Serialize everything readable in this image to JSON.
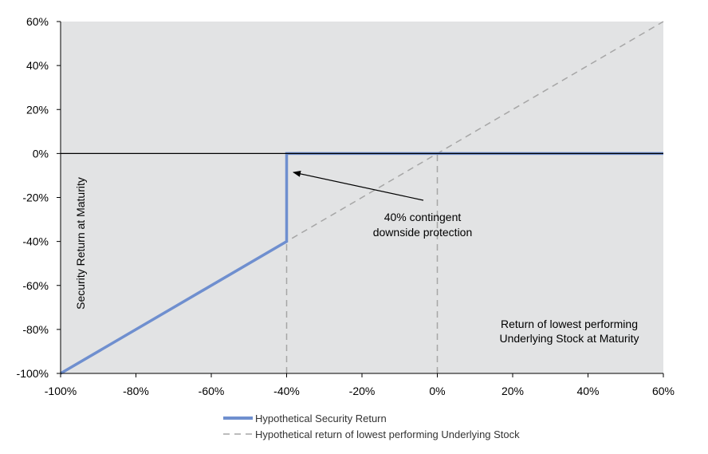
{
  "chart_data": {
    "type": "line",
    "ylabel": "Security Return at Maturity",
    "xlabel_lines": [
      "Return of lowest performing",
      "Underlying Stock at Maturity"
    ],
    "annotation_lines": [
      "40% contingent",
      "downside protection"
    ],
    "xlim": [
      -100,
      60
    ],
    "ylim": [
      -100,
      60
    ],
    "x_ticks": [
      -100,
      -80,
      -60,
      -40,
      -20,
      0,
      20,
      40,
      60
    ],
    "y_ticks": [
      60,
      40,
      20,
      0,
      -20,
      -40,
      -60,
      -80,
      -100
    ],
    "x_tick_labels": [
      "-100%",
      "-80%",
      "-60%",
      "-40%",
      "-20%",
      "0%",
      "20%",
      "40%",
      "60%"
    ],
    "y_tick_labels": [
      "60%",
      "40%",
      "20%",
      "0%",
      "-20%",
      "-40%",
      "-60%",
      "-80%",
      "-100%"
    ],
    "series": [
      {
        "name": "Hypothetical Security Return",
        "style": "solid",
        "color": "#6f8fcf",
        "points": [
          [
            -100,
            -100
          ],
          [
            -40,
            -40
          ],
          [
            -40,
            0
          ],
          [
            60,
            0
          ]
        ]
      },
      {
        "name": "Hypothetical return of lowest performing Underlying Stock",
        "style": "dashed",
        "color": "#a6a6a6",
        "points": [
          [
            -100,
            -100
          ],
          [
            60,
            60
          ]
        ]
      }
    ],
    "reference_lines": {
      "vertical_dashed_at": [
        -40,
        0
      ],
      "horizontal_solid_at": 0
    },
    "plot_background": "#e2e3e4",
    "grid": false
  }
}
